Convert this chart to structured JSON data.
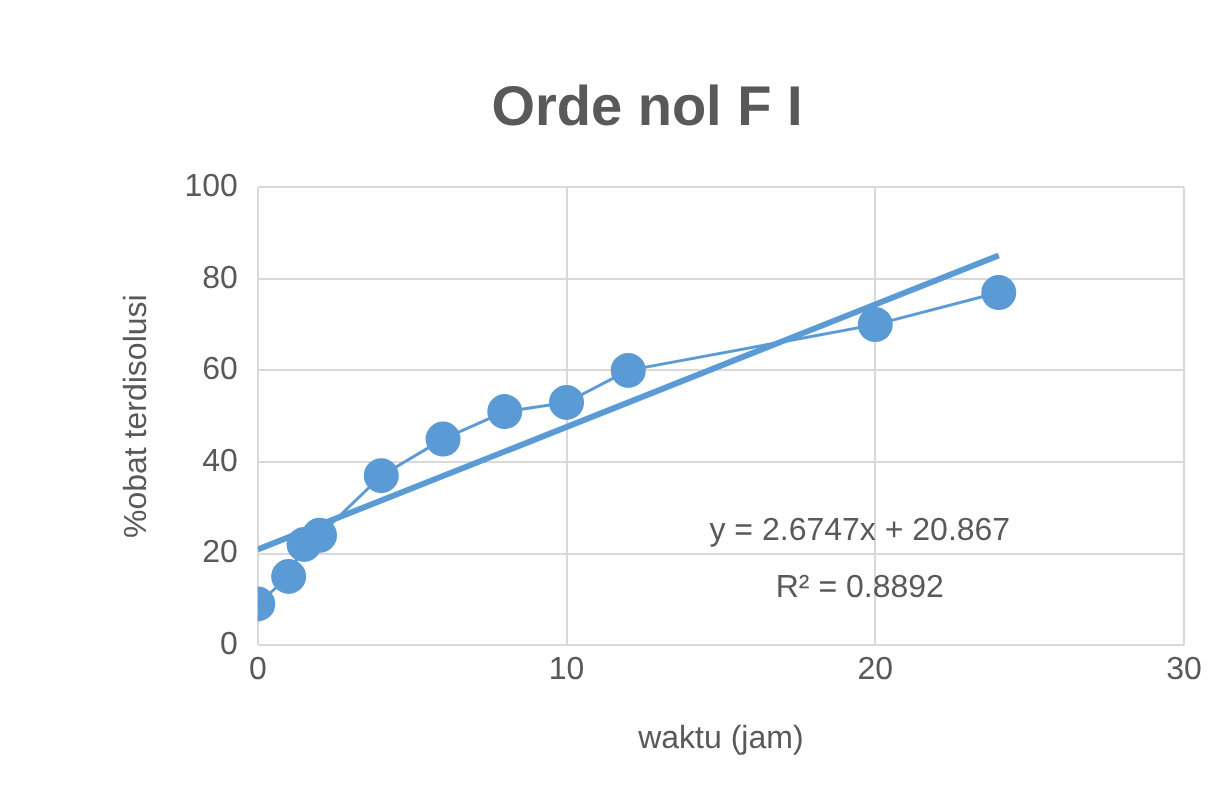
{
  "chart_data": {
    "type": "line",
    "title": "Orde nol F I",
    "xlabel": "waktu (jam)",
    "ylabel": "%obat terdisolusi",
    "x": [
      0,
      1,
      1.5,
      2,
      4,
      6,
      8,
      10,
      12,
      20,
      24
    ],
    "series": [
      {
        "color": "#5b9bd5",
        "marker": "circle",
        "values": [
          9,
          15,
          22,
          24,
          37,
          45,
          51,
          53,
          60,
          70,
          77
        ]
      },
      {
        "type": "line",
        "color": "#5b9bd5",
        "marker": "none",
        "x": [
          0,
          24
        ],
        "values": [
          20.9,
          85.1
        ]
      }
    ],
    "xlim": [
      0,
      30
    ],
    "xticks": [
      0,
      10,
      20,
      30
    ],
    "ylim": [
      0,
      100
    ],
    "yticks": [
      0,
      20,
      40,
      60,
      80,
      100
    ],
    "grid": true,
    "legend": false,
    "annotations": [
      "y = 2.6747x + 20.867",
      "R² = 0.8892"
    ]
  }
}
